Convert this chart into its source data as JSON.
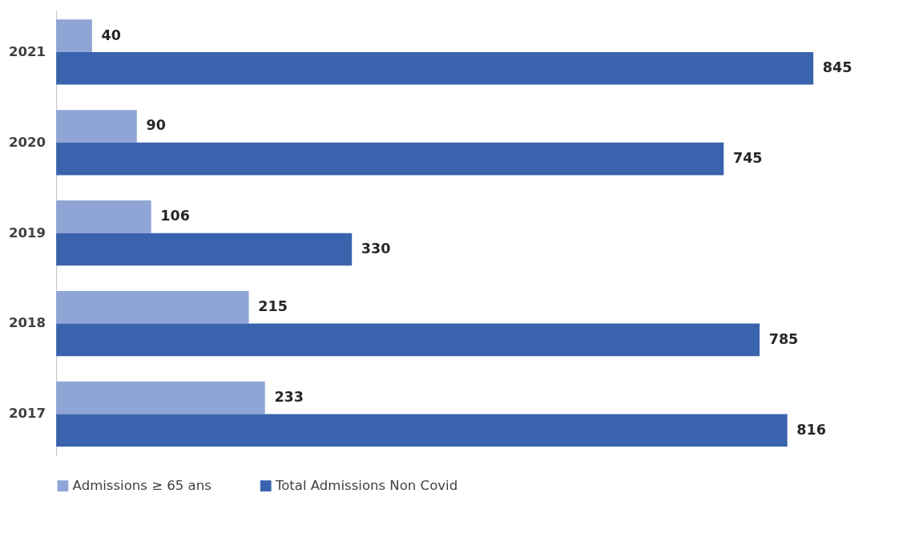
{
  "chart_data": {
    "type": "bar",
    "orientation": "horizontal",
    "categories": [
      "2021",
      "2020",
      "2019",
      "2018",
      "2017"
    ],
    "series": [
      {
        "name": "Admissions ≥ 65 ans",
        "color": "#8fa5d6",
        "values": [
          40,
          90,
          106,
          215,
          233
        ]
      },
      {
        "name": "Total Admissions Non Covid",
        "color": "#3a63ad",
        "values": [
          845,
          745,
          330,
          785,
          816
        ]
      }
    ],
    "data_labels": true,
    "legend": "bottom",
    "grid": false
  }
}
